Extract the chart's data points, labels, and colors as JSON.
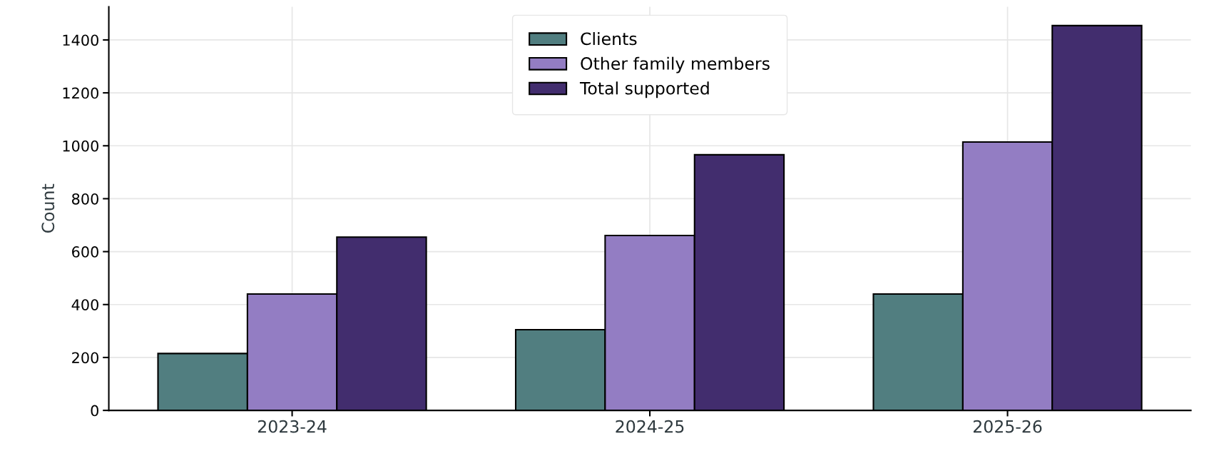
{
  "chart_data": {
    "type": "bar",
    "ylabel": "Count",
    "categories": [
      "2023-24",
      "2024-25",
      "2025-26"
    ],
    "series": [
      {
        "name": "Clients",
        "color": "#517e80",
        "values": [
          215,
          305,
          440
        ]
      },
      {
        "name": "Other family members",
        "color": "#937dc3",
        "values": [
          440,
          661,
          1014
        ]
      },
      {
        "name": "Total supported",
        "color": "#422d6e",
        "values": [
          655,
          966,
          1454
        ]
      }
    ],
    "ylim": [
      0,
      1525
    ],
    "yticks": [
      0,
      200,
      400,
      600,
      800,
      1000,
      1200,
      1400
    ],
    "grid": true,
    "legend": "top"
  }
}
